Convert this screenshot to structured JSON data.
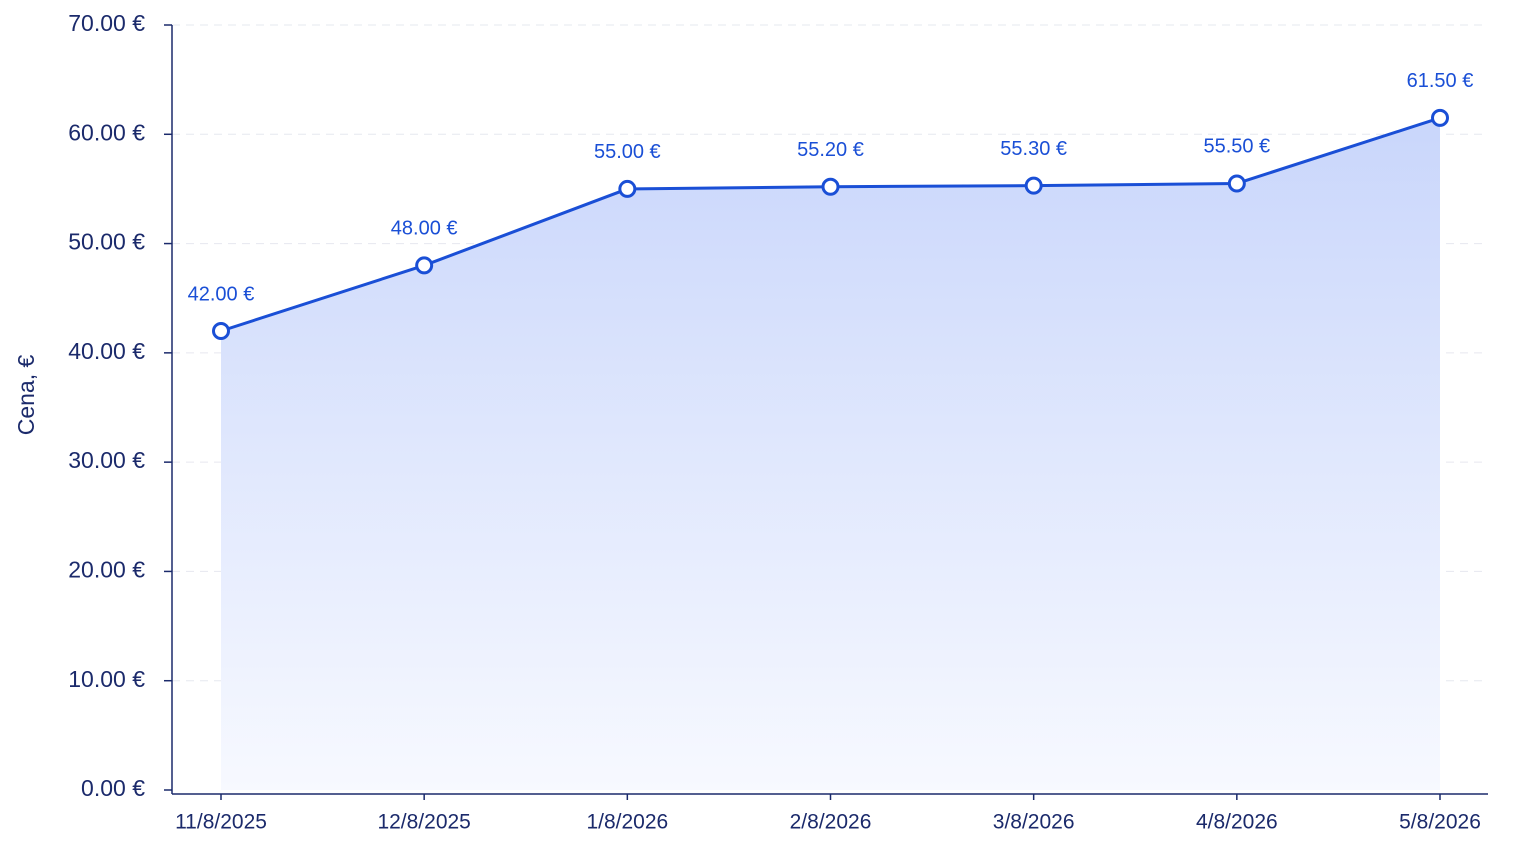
{
  "chart_data": {
    "type": "line",
    "y_label": "Cena, €",
    "categories": [
      "11/8/2025",
      "12/8/2025",
      "1/8/2026",
      "2/8/2026",
      "3/8/2026",
      "4/8/2026",
      "5/8/2026"
    ],
    "values": [
      42.0,
      48.0,
      55.0,
      55.2,
      55.3,
      55.5,
      61.5
    ],
    "value_labels": [
      "42.00 €",
      "48.00 €",
      "55.00 €",
      "55.20 €",
      "55.30 €",
      "55.50 €",
      "61.50 €"
    ],
    "color": "#1a4fd6",
    "area": true,
    "ylim": [
      0,
      70
    ],
    "yticks": [
      {
        "value": 0,
        "label": "0.00 €"
      },
      {
        "value": 10,
        "label": "10.00 €"
      },
      {
        "value": 20,
        "label": "20.00 €"
      },
      {
        "value": 30,
        "label": "30.00 €"
      },
      {
        "value": 40,
        "label": "40.00 €"
      },
      {
        "value": 50,
        "label": "50.00 €"
      },
      {
        "value": 60,
        "label": "60.00 €"
      },
      {
        "value": 70,
        "label": "70.00 €"
      }
    ],
    "grid": true
  }
}
